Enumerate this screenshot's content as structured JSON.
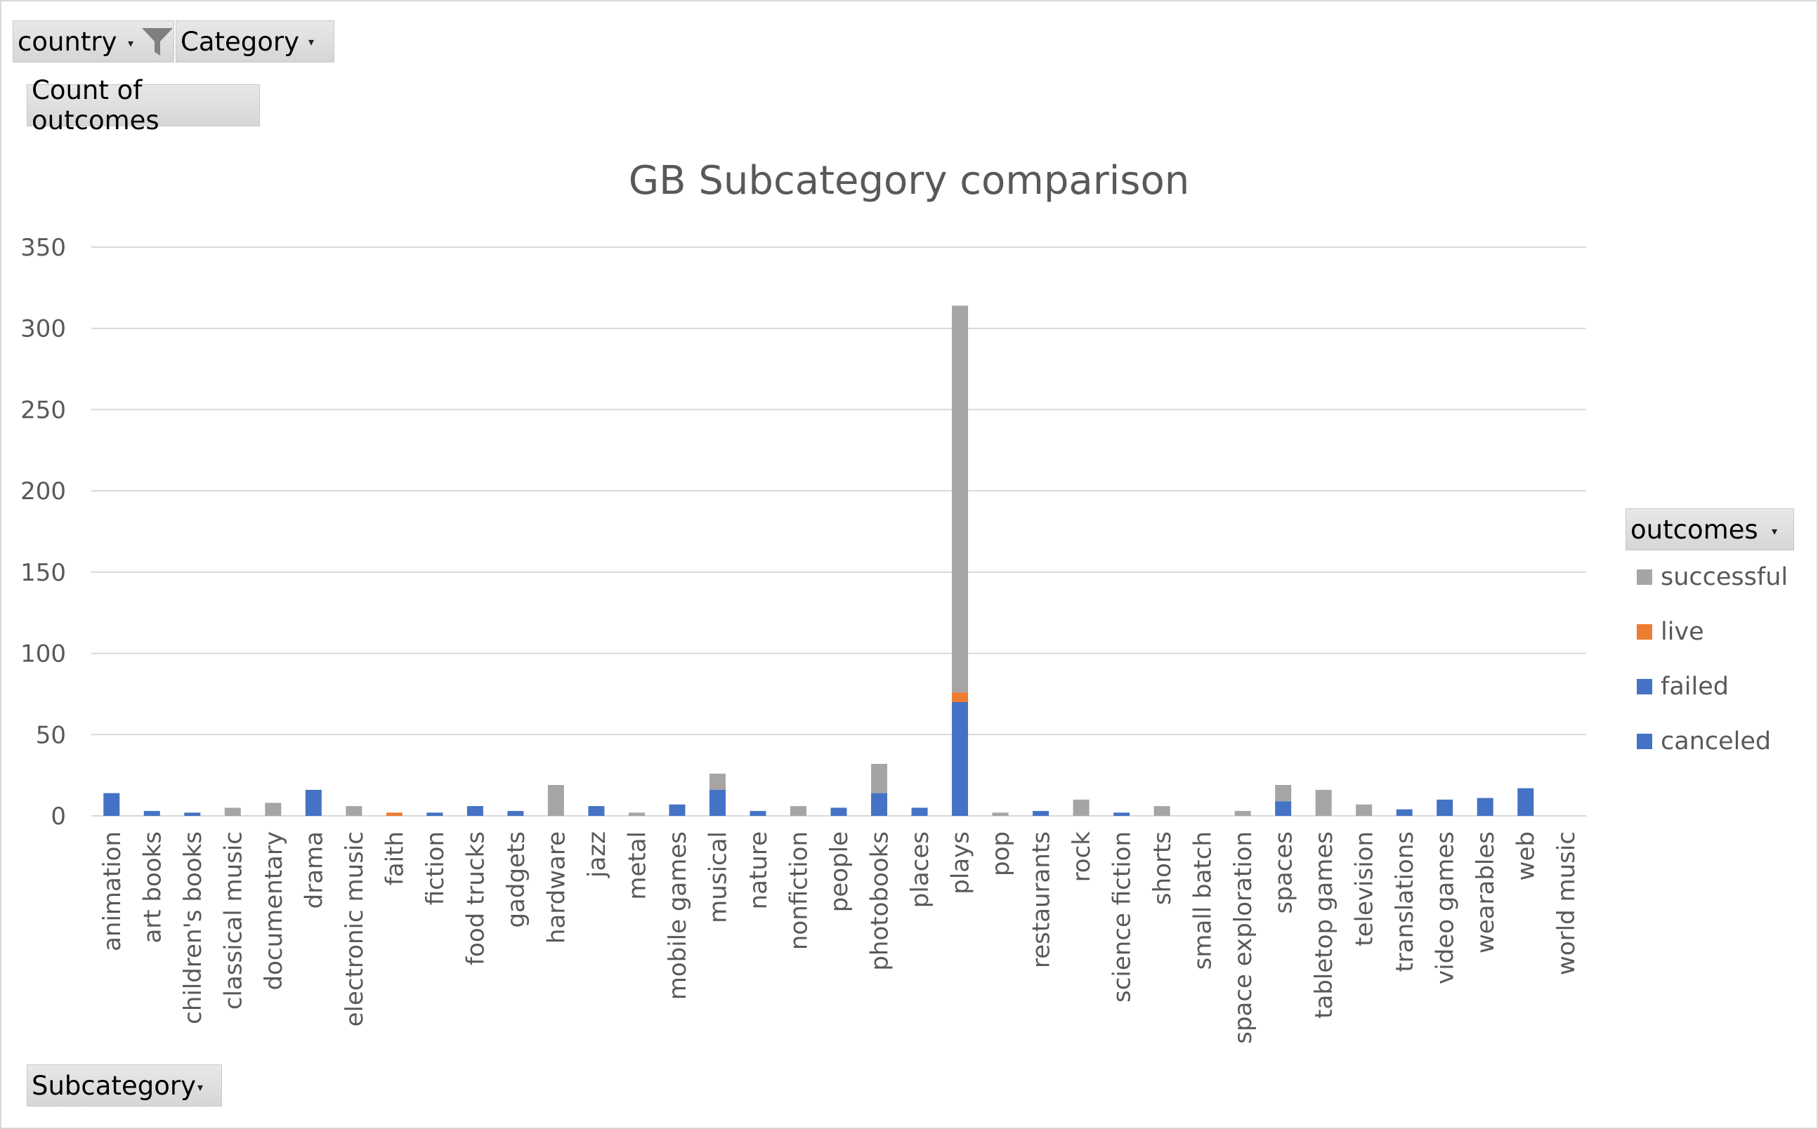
{
  "filters": {
    "country_label": "country",
    "category_label": "Category"
  },
  "values_field": "Count of outcomes",
  "axis_field": "Subcategory",
  "legend_field": "outcomes",
  "icons": [
    "filter-icon",
    "dropdown-arrow-icon"
  ],
  "colors": {
    "successful": "#a5a5a5",
    "live": "#ed7d31",
    "failed": "#4472c4",
    "canceled": "#4472c4",
    "gridline": "#d9d9d9",
    "title": "#595959",
    "tick_text": "#595959"
  },
  "chart_data": {
    "type": "bar",
    "stacked": true,
    "title": "GB Subcategory comparison",
    "xlabel": "",
    "ylabel": "",
    "ylim": [
      0,
      350
    ],
    "yticks": [
      0,
      50,
      100,
      150,
      200,
      250,
      300,
      350
    ],
    "grid": true,
    "legend_position": "right",
    "categories": [
      "animation",
      "art books",
      "children's books",
      "classical music",
      "documentary",
      "drama",
      "electronic music",
      "faith",
      "fiction",
      "food trucks",
      "gadgets",
      "hardware",
      "jazz",
      "metal",
      "mobile games",
      "musical",
      "nature",
      "nonfiction",
      "people",
      "photobooks",
      "places",
      "plays",
      "pop",
      "restaurants",
      "rock",
      "science fiction",
      "shorts",
      "small batch",
      "space exploration",
      "spaces",
      "tabletop games",
      "television",
      "translations",
      "video games",
      "wearables",
      "web",
      "world music"
    ],
    "series": [
      {
        "name": "canceled",
        "values": [
          14,
          3,
          2,
          0,
          0,
          16,
          0,
          0,
          2,
          6,
          3,
          0,
          6,
          0,
          7,
          16,
          3,
          0,
          5,
          14,
          5,
          70,
          0,
          3,
          0,
          2,
          0,
          0,
          0,
          9,
          0,
          0,
          4,
          10,
          11,
          17,
          0
        ]
      },
      {
        "name": "failed",
        "values": [
          0,
          0,
          0,
          0,
          0,
          0,
          0,
          0,
          0,
          0,
          0,
          0,
          0,
          0,
          0,
          0,
          0,
          0,
          0,
          0,
          0,
          0,
          0,
          0,
          0,
          0,
          0,
          0,
          0,
          0,
          0,
          0,
          0,
          0,
          0,
          0,
          0
        ]
      },
      {
        "name": "live",
        "values": [
          0,
          0,
          0,
          0,
          0,
          0,
          0,
          2,
          0,
          0,
          0,
          0,
          0,
          0,
          0,
          0,
          0,
          0,
          0,
          0,
          0,
          6,
          0,
          0,
          0,
          0,
          0,
          0,
          0,
          0,
          0,
          0,
          0,
          0,
          0,
          0,
          0
        ]
      },
      {
        "name": "successful",
        "values": [
          0,
          0,
          0,
          5,
          8,
          0,
          6,
          0,
          0,
          0,
          0,
          19,
          0,
          2,
          0,
          10,
          0,
          6,
          0,
          18,
          0,
          238,
          2,
          0,
          10,
          0,
          6,
          0,
          3,
          10,
          16,
          7,
          0,
          0,
          0,
          0,
          0
        ]
      }
    ],
    "legend": [
      "successful",
      "live",
      "failed",
      "canceled"
    ]
  }
}
